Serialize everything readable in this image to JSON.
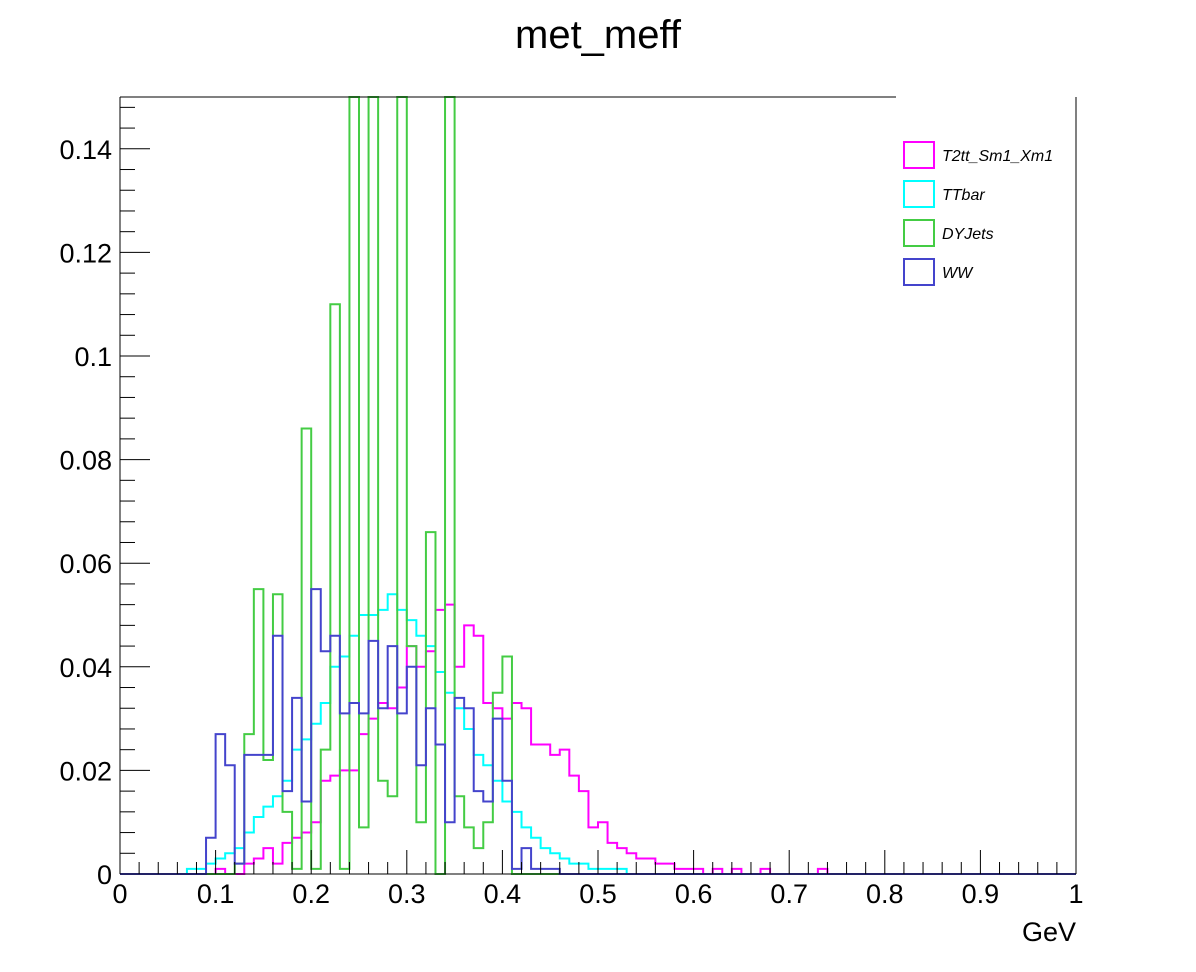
{
  "chart_data": {
    "type": "step-histogram",
    "title": "met_meff",
    "xlabel": "GeV",
    "ylabel": "",
    "xlim": [
      0,
      1
    ],
    "ylim": [
      0,
      0.15
    ],
    "x_ticks": [
      "0",
      "0.1",
      "0.2",
      "0.3",
      "0.4",
      "0.5",
      "0.6",
      "0.7",
      "0.8",
      "0.9",
      "1"
    ],
    "y_ticks": [
      "0",
      "0.02",
      "0.04",
      "0.06",
      "0.08",
      "0.1",
      "0.12",
      "0.14"
    ],
    "bin_width": 0.01,
    "legend_position": "top-right",
    "series": [
      {
        "name": "T2tt_Sm1_Xm1",
        "color": "#ff00ff",
        "values": [
          0,
          0,
          0,
          0,
          0,
          0,
          0,
          0,
          0,
          0,
          0.001,
          0,
          0,
          0.002,
          0.003,
          0.005,
          0.002,
          0.006,
          0.007,
          0.008,
          0.01,
          0.018,
          0.019,
          0.02,
          0.02,
          0.027,
          0.03,
          0.033,
          0.032,
          0.036,
          0.044,
          0.04,
          0.043,
          0.051,
          0.052,
          0.04,
          0.048,
          0.046,
          0.033,
          0.032,
          0.03,
          0.033,
          0.032,
          0.025,
          0.025,
          0.023,
          0.024,
          0.019,
          0.016,
          0.009,
          0.01,
          0.006,
          0.005,
          0.004,
          0.003,
          0.003,
          0.002,
          0.002,
          0.001,
          0.001,
          0.001,
          0,
          0.001,
          0,
          0.001,
          0,
          0,
          0.001,
          0,
          0,
          0,
          0,
          0,
          0.001,
          0,
          0,
          0,
          0,
          0,
          0,
          0,
          0,
          0,
          0,
          0,
          0,
          0,
          0,
          0,
          0,
          0,
          0,
          0,
          0,
          0,
          0,
          0,
          0,
          0,
          0
        ]
      },
      {
        "name": "TTbar",
        "color": "#00ffff",
        "values": [
          0,
          0,
          0,
          0,
          0,
          0,
          0,
          0.001,
          0.001,
          0.002,
          0.003,
          0.004,
          0.005,
          0.008,
          0.011,
          0.013,
          0.015,
          0.018,
          0.024,
          0.026,
          0.029,
          0.033,
          0.04,
          0.042,
          0.046,
          0.05,
          0.05,
          0.051,
          0.054,
          0.051,
          0.049,
          0.046,
          0.044,
          0.039,
          0.035,
          0.032,
          0.028,
          0.023,
          0.021,
          0.018,
          0.014,
          0.012,
          0.009,
          0.007,
          0.005,
          0.004,
          0.003,
          0.002,
          0.002,
          0.001,
          0.001,
          0.001,
          0.001,
          0,
          0,
          0,
          0,
          0,
          0,
          0,
          0,
          0,
          0,
          0,
          0,
          0,
          0,
          0,
          0,
          0,
          0,
          0,
          0,
          0,
          0,
          0,
          0,
          0,
          0,
          0,
          0,
          0,
          0,
          0,
          0,
          0,
          0,
          0,
          0,
          0,
          0,
          0,
          0,
          0,
          0,
          0,
          0,
          0,
          0,
          0
        ]
      },
      {
        "name": "DYJets",
        "color": "#44cc44",
        "values": [
          0,
          0,
          0,
          0,
          0,
          0,
          0,
          0,
          0,
          0,
          0,
          0,
          0.002,
          0.027,
          0.055,
          0.022,
          0.054,
          0.012,
          0.001,
          0.086,
          0.001,
          0.024,
          0.11,
          0.001,
          0.15,
          0.009,
          0.15,
          0.018,
          0.015,
          0.15,
          0.044,
          0.01,
          0.066,
          0.0,
          0.15,
          0.015,
          0.009,
          0.005,
          0.01,
          0.035,
          0.042,
          0.0,
          0,
          0,
          0,
          0,
          0,
          0,
          0,
          0,
          0,
          0,
          0,
          0,
          0,
          0,
          0,
          0,
          0,
          0,
          0,
          0,
          0,
          0,
          0,
          0,
          0,
          0,
          0,
          0,
          0,
          0,
          0,
          0,
          0,
          0,
          0,
          0,
          0,
          0,
          0,
          0,
          0,
          0,
          0,
          0,
          0,
          0,
          0,
          0,
          0,
          0,
          0,
          0,
          0,
          0,
          0,
          0,
          0,
          0
        ]
      },
      {
        "name": "WW",
        "color": "#4444cc",
        "values": [
          0,
          0,
          0,
          0,
          0,
          0,
          0,
          0,
          0,
          0.007,
          0.027,
          0.021,
          0.002,
          0.023,
          0.023,
          0.023,
          0.046,
          0.016,
          0.034,
          0.014,
          0.055,
          0.043,
          0.046,
          0.031,
          0.033,
          0.031,
          0.045,
          0.032,
          0.044,
          0.031,
          0.04,
          0.021,
          0.032,
          0.025,
          0.01,
          0.034,
          0.032,
          0.016,
          0.014,
          0.03,
          0.018,
          0.001,
          0.005,
          0.001,
          0.001,
          0.001,
          0,
          0,
          0,
          0,
          0,
          0,
          0,
          0,
          0,
          0,
          0,
          0,
          0,
          0,
          0,
          0,
          0,
          0,
          0,
          0,
          0,
          0,
          0,
          0,
          0,
          0,
          0,
          0,
          0,
          0,
          0,
          0,
          0,
          0,
          0,
          0,
          0,
          0,
          0,
          0,
          0,
          0,
          0,
          0,
          0,
          0,
          0,
          0,
          0,
          0,
          0,
          0,
          0,
          0
        ]
      }
    ]
  }
}
